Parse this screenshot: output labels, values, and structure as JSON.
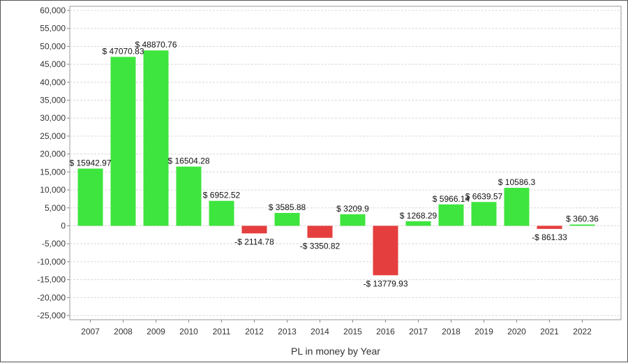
{
  "chart_data": {
    "type": "bar",
    "xlabel": "PL in money by Year",
    "ylabel": "",
    "ylim": [
      -25000,
      60000
    ],
    "yticks": [
      60000,
      55000,
      50000,
      45000,
      40000,
      35000,
      30000,
      25000,
      20000,
      15000,
      10000,
      5000,
      0,
      -5000,
      -10000,
      -15000,
      -20000,
      -25000
    ],
    "ytick_labels": [
      "60,000",
      "55,000",
      "50,000",
      "45,000",
      "40,000",
      "35,000",
      "30,000",
      "25,000",
      "20,000",
      "15,000",
      "10,000",
      "5,000",
      "0",
      "-5,000",
      "-10,000",
      "-15,000",
      "-20,000",
      "-25,000"
    ],
    "categories": [
      "2007",
      "2008",
      "2009",
      "2010",
      "2011",
      "2012",
      "2013",
      "2014",
      "2015",
      "2016",
      "2017",
      "2018",
      "2019",
      "2020",
      "2021",
      "2022"
    ],
    "values": [
      15942.97,
      47070.83,
      48870.76,
      16504.28,
      6952.52,
      -2114.78,
      3585.88,
      -3350.82,
      3209.9,
      -13779.93,
      1268.29,
      5966.14,
      6639.57,
      10586.3,
      -861.33,
      360.36
    ],
    "data_labels": [
      "$ 15942.97",
      "$ 47070.83",
      "$ 48870.76",
      "$ 16504.28",
      "$ 6952.52",
      "-$ 2114.78",
      "$ 3585.88",
      "-$ 3350.82",
      "$ 3209.9",
      "-$ 13779.93",
      "$ 1268.29",
      "$ 5966.14",
      "$ 6639.57",
      "$ 10586.3",
      "-$ 861.33",
      "$ 360.36"
    ],
    "grid": true,
    "legend": "none",
    "colors": {
      "positive": "#3ee53e",
      "negative": "#e53e3e"
    }
  }
}
